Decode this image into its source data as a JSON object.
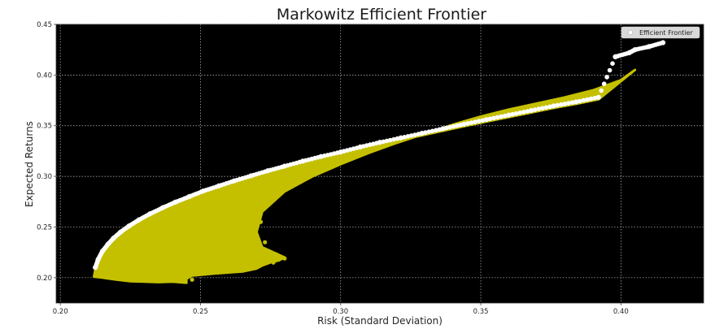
{
  "chart_data": {
    "type": "scatter",
    "title": "Markowitz Efficient Frontier",
    "xlabel": "Risk (Standard Deviation)",
    "ylabel": "Expected Returns",
    "xlim": [
      0.1985,
      0.4295
    ],
    "ylim": [
      0.175,
      0.45
    ],
    "x_ticks": [
      "0.20",
      "0.25",
      "0.30",
      "0.35",
      "0.40"
    ],
    "y_ticks": [
      "0.20",
      "0.25",
      "0.30",
      "0.35",
      "0.40",
      "0.45"
    ],
    "grid": true,
    "grid_style": "dotted",
    "background": "#000000",
    "legend": {
      "placement": "top-right",
      "entries": [
        "Efficient Frontier"
      ]
    },
    "colors": {
      "frontier": "#ffffff",
      "random_portfolios": "#c4c000"
    },
    "series": [
      {
        "name": "Efficient Frontier",
        "x": [
          0.2125,
          0.2135,
          0.215,
          0.217,
          0.219,
          0.2215,
          0.2245,
          0.228,
          0.232,
          0.2365,
          0.241,
          0.246,
          0.251,
          0.2565,
          0.262,
          0.268,
          0.274,
          0.28,
          0.2865,
          0.293,
          0.3,
          0.307,
          0.314,
          0.3215,
          0.329,
          0.3365,
          0.344,
          0.352,
          0.36,
          0.368,
          0.376,
          0.384,
          0.392,
          0.398,
          0.403,
          0.405,
          0.41,
          0.415
        ],
        "y": [
          0.21,
          0.218,
          0.226,
          0.233,
          0.239,
          0.245,
          0.251,
          0.257,
          0.263,
          0.269,
          0.2745,
          0.28,
          0.2855,
          0.2905,
          0.2955,
          0.3005,
          0.3055,
          0.31,
          0.315,
          0.3195,
          0.324,
          0.329,
          0.3335,
          0.338,
          0.3425,
          0.347,
          0.3515,
          0.356,
          0.3605,
          0.365,
          0.3695,
          0.3735,
          0.378,
          0.418,
          0.422,
          0.425,
          0.428,
          0.432
        ]
      },
      {
        "name": "",
        "x": [
          0.212,
          0.215,
          0.22,
          0.225,
          0.23,
          0.235,
          0.24,
          0.245,
          0.245,
          0.247,
          0.255,
          0.265,
          0.27,
          0.272,
          0.275,
          0.278,
          0.28,
          0.272,
          0.27,
          0.272,
          0.28,
          0.29,
          0.3,
          0.31,
          0.32,
          0.33,
          0.34,
          0.35,
          0.36,
          0.37,
          0.38,
          0.39,
          0.4,
          0.405
        ],
        "y": [
          0.201,
          0.2,
          0.198,
          0.1965,
          0.196,
          0.1955,
          0.196,
          0.195,
          0.199,
          0.202,
          0.204,
          0.206,
          0.209,
          0.212,
          0.215,
          0.217,
          0.22,
          0.23,
          0.245,
          0.265,
          0.285,
          0.3,
          0.312,
          0.323,
          0.333,
          0.342,
          0.351,
          0.359,
          0.366,
          0.372,
          0.378,
          0.385,
          0.395,
          0.405
        ]
      }
    ]
  }
}
